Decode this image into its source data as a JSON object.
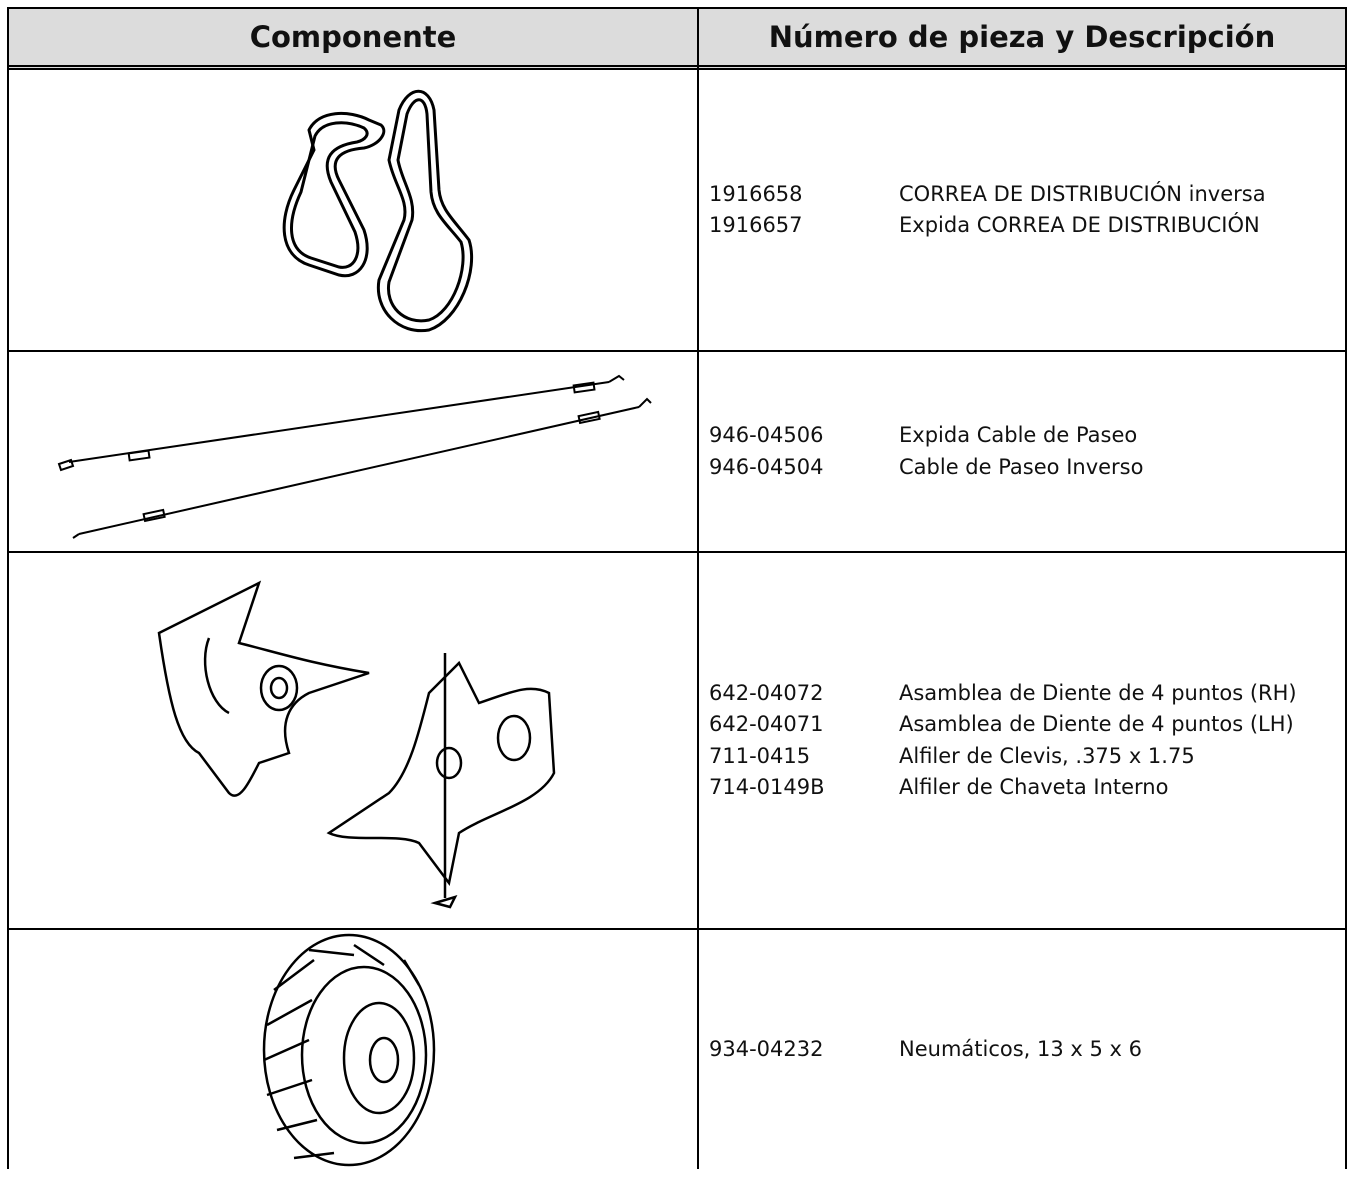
{
  "header": {
    "component": "Componente",
    "part": "Número de pieza y Descripción"
  },
  "rows": [
    {
      "parts": [
        {
          "number": "1916658",
          "description": "CORREA DE DISTRIBUCIÓN inversa"
        },
        {
          "number": "1916657",
          "description": "Expida CORREA DE DISTRIBUCIÓN"
        }
      ]
    },
    {
      "parts": [
        {
          "number": "946-04506",
          "description": "Expida Cable de Paseo"
        },
        {
          "number": "946-04504",
          "description": "Cable de Paseo Inverso"
        }
      ]
    },
    {
      "parts": [
        {
          "number": "642-04072",
          "description": "Asamblea de Diente de 4 puntos (RH)"
        },
        {
          "number": "642-04071",
          "description": "Asamblea de Diente de 4 puntos (LH)"
        },
        {
          "number": "711-0415",
          "description": "Alfiler de Clevis, .375 x 1.75"
        },
        {
          "number": "714-0149B",
          "description": "Alfiler de Chaveta Interno"
        }
      ]
    },
    {
      "parts": [
        {
          "number": "934-04232",
          "description": "Neumáticos, 13 x 5 x 6"
        }
      ]
    }
  ]
}
